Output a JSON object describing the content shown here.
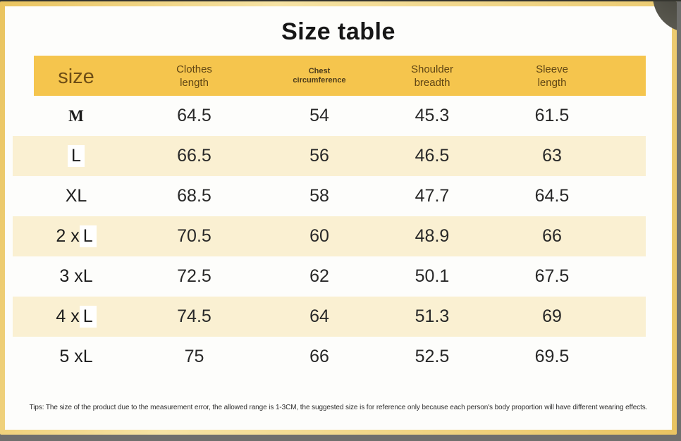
{
  "page": {
    "title": "Size table",
    "tips": "Tips: The size of the product due to the measurement error, the allowed range is 1-3CM, the suggested size is for reference only because each person's body proportion will have different wearing effects."
  },
  "colors": {
    "header_bg": "#f5c54d",
    "row_shaded_bg": "#faf0d2",
    "frame_gold": "#eac45f",
    "outer_gray": "#6f6f6d",
    "corner_circle": "#55544b"
  },
  "table": {
    "size_header": "size",
    "columns": [
      {
        "line1": "Clothes",
        "line2": "length",
        "small": false
      },
      {
        "line1": "Chest",
        "line2": "circumference",
        "small": true
      },
      {
        "line1": "Shoulder",
        "line2": "breadth",
        "small": false
      },
      {
        "line1": "Sleeve",
        "line2": "length",
        "small": false
      }
    ],
    "rows": [
      {
        "size_prefix": "",
        "size_letter": "M",
        "serif": true,
        "patched": false,
        "shaded": false,
        "values": [
          "64.5",
          "54",
          "45.3",
          "61.5"
        ]
      },
      {
        "size_prefix": "",
        "size_letter": "L",
        "serif": false,
        "patched": true,
        "shaded": true,
        "values": [
          "66.5",
          "56",
          "46.5",
          "63"
        ]
      },
      {
        "size_prefix": "X",
        "size_letter": "L",
        "serif": false,
        "patched": false,
        "shaded": false,
        "values": [
          "68.5",
          "58",
          "47.7",
          "64.5"
        ]
      },
      {
        "size_prefix": "2 x",
        "size_letter": "L",
        "serif": false,
        "patched": true,
        "shaded": true,
        "values": [
          "70.5",
          "60",
          "48.9",
          "66"
        ]
      },
      {
        "size_prefix": "3 x",
        "size_letter": "L",
        "serif": false,
        "patched": false,
        "shaded": false,
        "values": [
          "72.5",
          "62",
          "50.1",
          "67.5"
        ]
      },
      {
        "size_prefix": "4 x",
        "size_letter": "L",
        "serif": false,
        "patched": true,
        "shaded": true,
        "values": [
          "74.5",
          "64",
          "51.3",
          "69"
        ]
      },
      {
        "size_prefix": "5 x",
        "size_letter": "L",
        "serif": false,
        "patched": false,
        "shaded": false,
        "values": [
          "75",
          "66",
          "52.5",
          "69.5"
        ]
      }
    ]
  }
}
